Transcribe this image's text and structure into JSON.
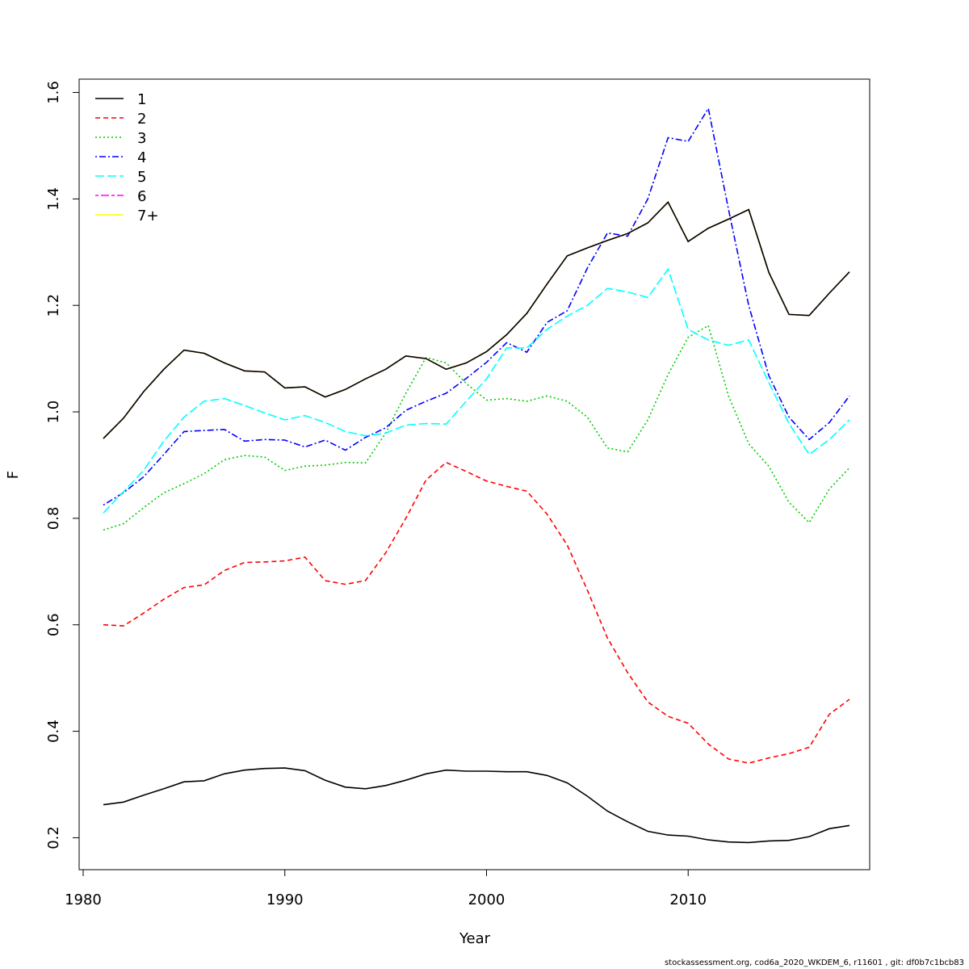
{
  "chart_data": {
    "type": "line",
    "title": "",
    "xlabel": "Year",
    "ylabel": "F",
    "xlim": [
      1979.8,
      2019
    ],
    "ylim": [
      0.14,
      1.625
    ],
    "x_ticks": [
      1980,
      1990,
      2000,
      2010
    ],
    "y_ticks": [
      0.2,
      0.4,
      0.6,
      0.8,
      1.0,
      1.2,
      1.4,
      1.6
    ],
    "x_tick_labels": [
      "1980",
      "1990",
      "2000",
      "2010"
    ],
    "y_tick_labels": [
      "0.2",
      "0.4",
      "0.6",
      "0.8",
      "1.0",
      "1.2",
      "1.4",
      "1.6"
    ],
    "grid": false,
    "legend_position": "top-left",
    "x": [
      1981,
      1982,
      1983,
      1984,
      1985,
      1986,
      1987,
      1988,
      1989,
      1990,
      1991,
      1992,
      1993,
      1994,
      1995,
      1996,
      1997,
      1998,
      1999,
      2000,
      2001,
      2002,
      2003,
      2004,
      2005,
      2006,
      2007,
      2008,
      2009,
      2010,
      2011,
      2012,
      2013,
      2014,
      2015,
      2016,
      2017,
      2018
    ],
    "series": [
      {
        "name": "1",
        "color": "#000000",
        "dash": "solid",
        "values": [
          0.262,
          0.267,
          0.28,
          0.292,
          0.305,
          0.307,
          0.32,
          0.327,
          0.33,
          0.331,
          0.326,
          0.308,
          0.295,
          0.292,
          0.298,
          0.308,
          0.32,
          0.327,
          0.325,
          0.325,
          0.324,
          0.324,
          0.317,
          0.303,
          0.278,
          0.25,
          0.23,
          0.212,
          0.205,
          0.203,
          0.196,
          0.192,
          0.191,
          0.194,
          0.195,
          0.202,
          0.217,
          0.223
        ]
      },
      {
        "name": "2",
        "color": "#ff0000",
        "dash": "dashed",
        "values": [
          0.6,
          0.598,
          0.622,
          0.648,
          0.67,
          0.675,
          0.702,
          0.717,
          0.718,
          0.72,
          0.727,
          0.683,
          0.676,
          0.683,
          0.735,
          0.8,
          0.872,
          0.905,
          0.888,
          0.87,
          0.86,
          0.851,
          0.808,
          0.75,
          0.665,
          0.575,
          0.51,
          0.455,
          0.428,
          0.415,
          0.376,
          0.348,
          0.34,
          0.35,
          0.358,
          0.37,
          0.432,
          0.46
        ]
      },
      {
        "name": "3",
        "color": "#00cd00",
        "dash": "dotted",
        "values": [
          0.778,
          0.79,
          0.82,
          0.848,
          0.865,
          0.884,
          0.91,
          0.918,
          0.915,
          0.89,
          0.898,
          0.9,
          0.905,
          0.904,
          0.96,
          1.035,
          1.102,
          1.092,
          1.053,
          1.022,
          1.025,
          1.02,
          1.03,
          1.02,
          0.99,
          0.932,
          0.925,
          0.985,
          1.07,
          1.14,
          1.162,
          1.03,
          0.94,
          0.898,
          0.83,
          0.792,
          0.855,
          0.895
        ]
      },
      {
        "name": "4",
        "color": "#0000ff",
        "dash": "dotdash",
        "values": [
          0.825,
          0.848,
          0.878,
          0.92,
          0.963,
          0.965,
          0.967,
          0.945,
          0.948,
          0.947,
          0.934,
          0.947,
          0.928,
          0.952,
          0.97,
          1.003,
          1.02,
          1.035,
          1.063,
          1.093,
          1.13,
          1.112,
          1.168,
          1.19,
          1.27,
          1.336,
          1.33,
          1.4,
          1.515,
          1.508,
          1.57,
          1.38,
          1.2,
          1.068,
          0.99,
          0.948,
          0.98,
          1.03
        ]
      },
      {
        "name": "5",
        "color": "#00ffff",
        "dash": "longdash",
        "values": [
          0.81,
          0.85,
          0.89,
          0.945,
          0.99,
          1.02,
          1.025,
          1.012,
          0.998,
          0.985,
          0.993,
          0.98,
          0.963,
          0.955,
          0.96,
          0.975,
          0.978,
          0.977,
          1.02,
          1.062,
          1.12,
          1.12,
          1.155,
          1.18,
          1.2,
          1.232,
          1.225,
          1.215,
          1.268,
          1.155,
          1.135,
          1.125,
          1.135,
          1.055,
          0.978,
          0.92,
          0.948,
          0.985
        ]
      },
      {
        "name": "6",
        "color": "#ff00ff",
        "dash": "twodash",
        "values": [
          0.95,
          0.988,
          1.038,
          1.08,
          1.116,
          1.11,
          1.092,
          1.077,
          1.075,
          1.045,
          1.047,
          1.028,
          1.042,
          1.062,
          1.08,
          1.105,
          1.1,
          1.08,
          1.092,
          1.113,
          1.145,
          1.185,
          1.24,
          1.293,
          1.308,
          1.322,
          1.335,
          1.355,
          1.394,
          1.32,
          1.345,
          1.362,
          1.38,
          1.262,
          1.183,
          1.181,
          1.223,
          1.263
        ]
      },
      {
        "name": "7+",
        "color": "#ffff00",
        "dash": "solid",
        "values": [
          0.95,
          0.988,
          1.038,
          1.08,
          1.116,
          1.11,
          1.092,
          1.077,
          1.075,
          1.045,
          1.047,
          1.028,
          1.042,
          1.062,
          1.08,
          1.105,
          1.1,
          1.08,
          1.092,
          1.113,
          1.145,
          1.185,
          1.24,
          1.293,
          1.308,
          1.322,
          1.335,
          1.355,
          1.394,
          1.32,
          1.345,
          1.362,
          1.38,
          1.262,
          1.183,
          1.181,
          1.223,
          1.263
        ]
      },
      {
        "name": "",
        "color": "#000000",
        "dash": "solid",
        "values": [
          0.95,
          0.988,
          1.038,
          1.08,
          1.116,
          1.11,
          1.092,
          1.077,
          1.075,
          1.045,
          1.047,
          1.028,
          1.042,
          1.062,
          1.08,
          1.105,
          1.1,
          1.08,
          1.092,
          1.113,
          1.145,
          1.185,
          1.24,
          1.293,
          1.308,
          1.322,
          1.335,
          1.355,
          1.394,
          1.32,
          1.345,
          1.362,
          1.38,
          1.262,
          1.183,
          1.181,
          1.223,
          1.263
        ]
      }
    ],
    "legend": [
      "1",
      "2",
      "3",
      "4",
      "5",
      "6",
      "7+"
    ]
  },
  "footer": "stockassessment.org, cod6a_2020_WKDEM_6, r11601 , git: df0b7c1bcb83"
}
